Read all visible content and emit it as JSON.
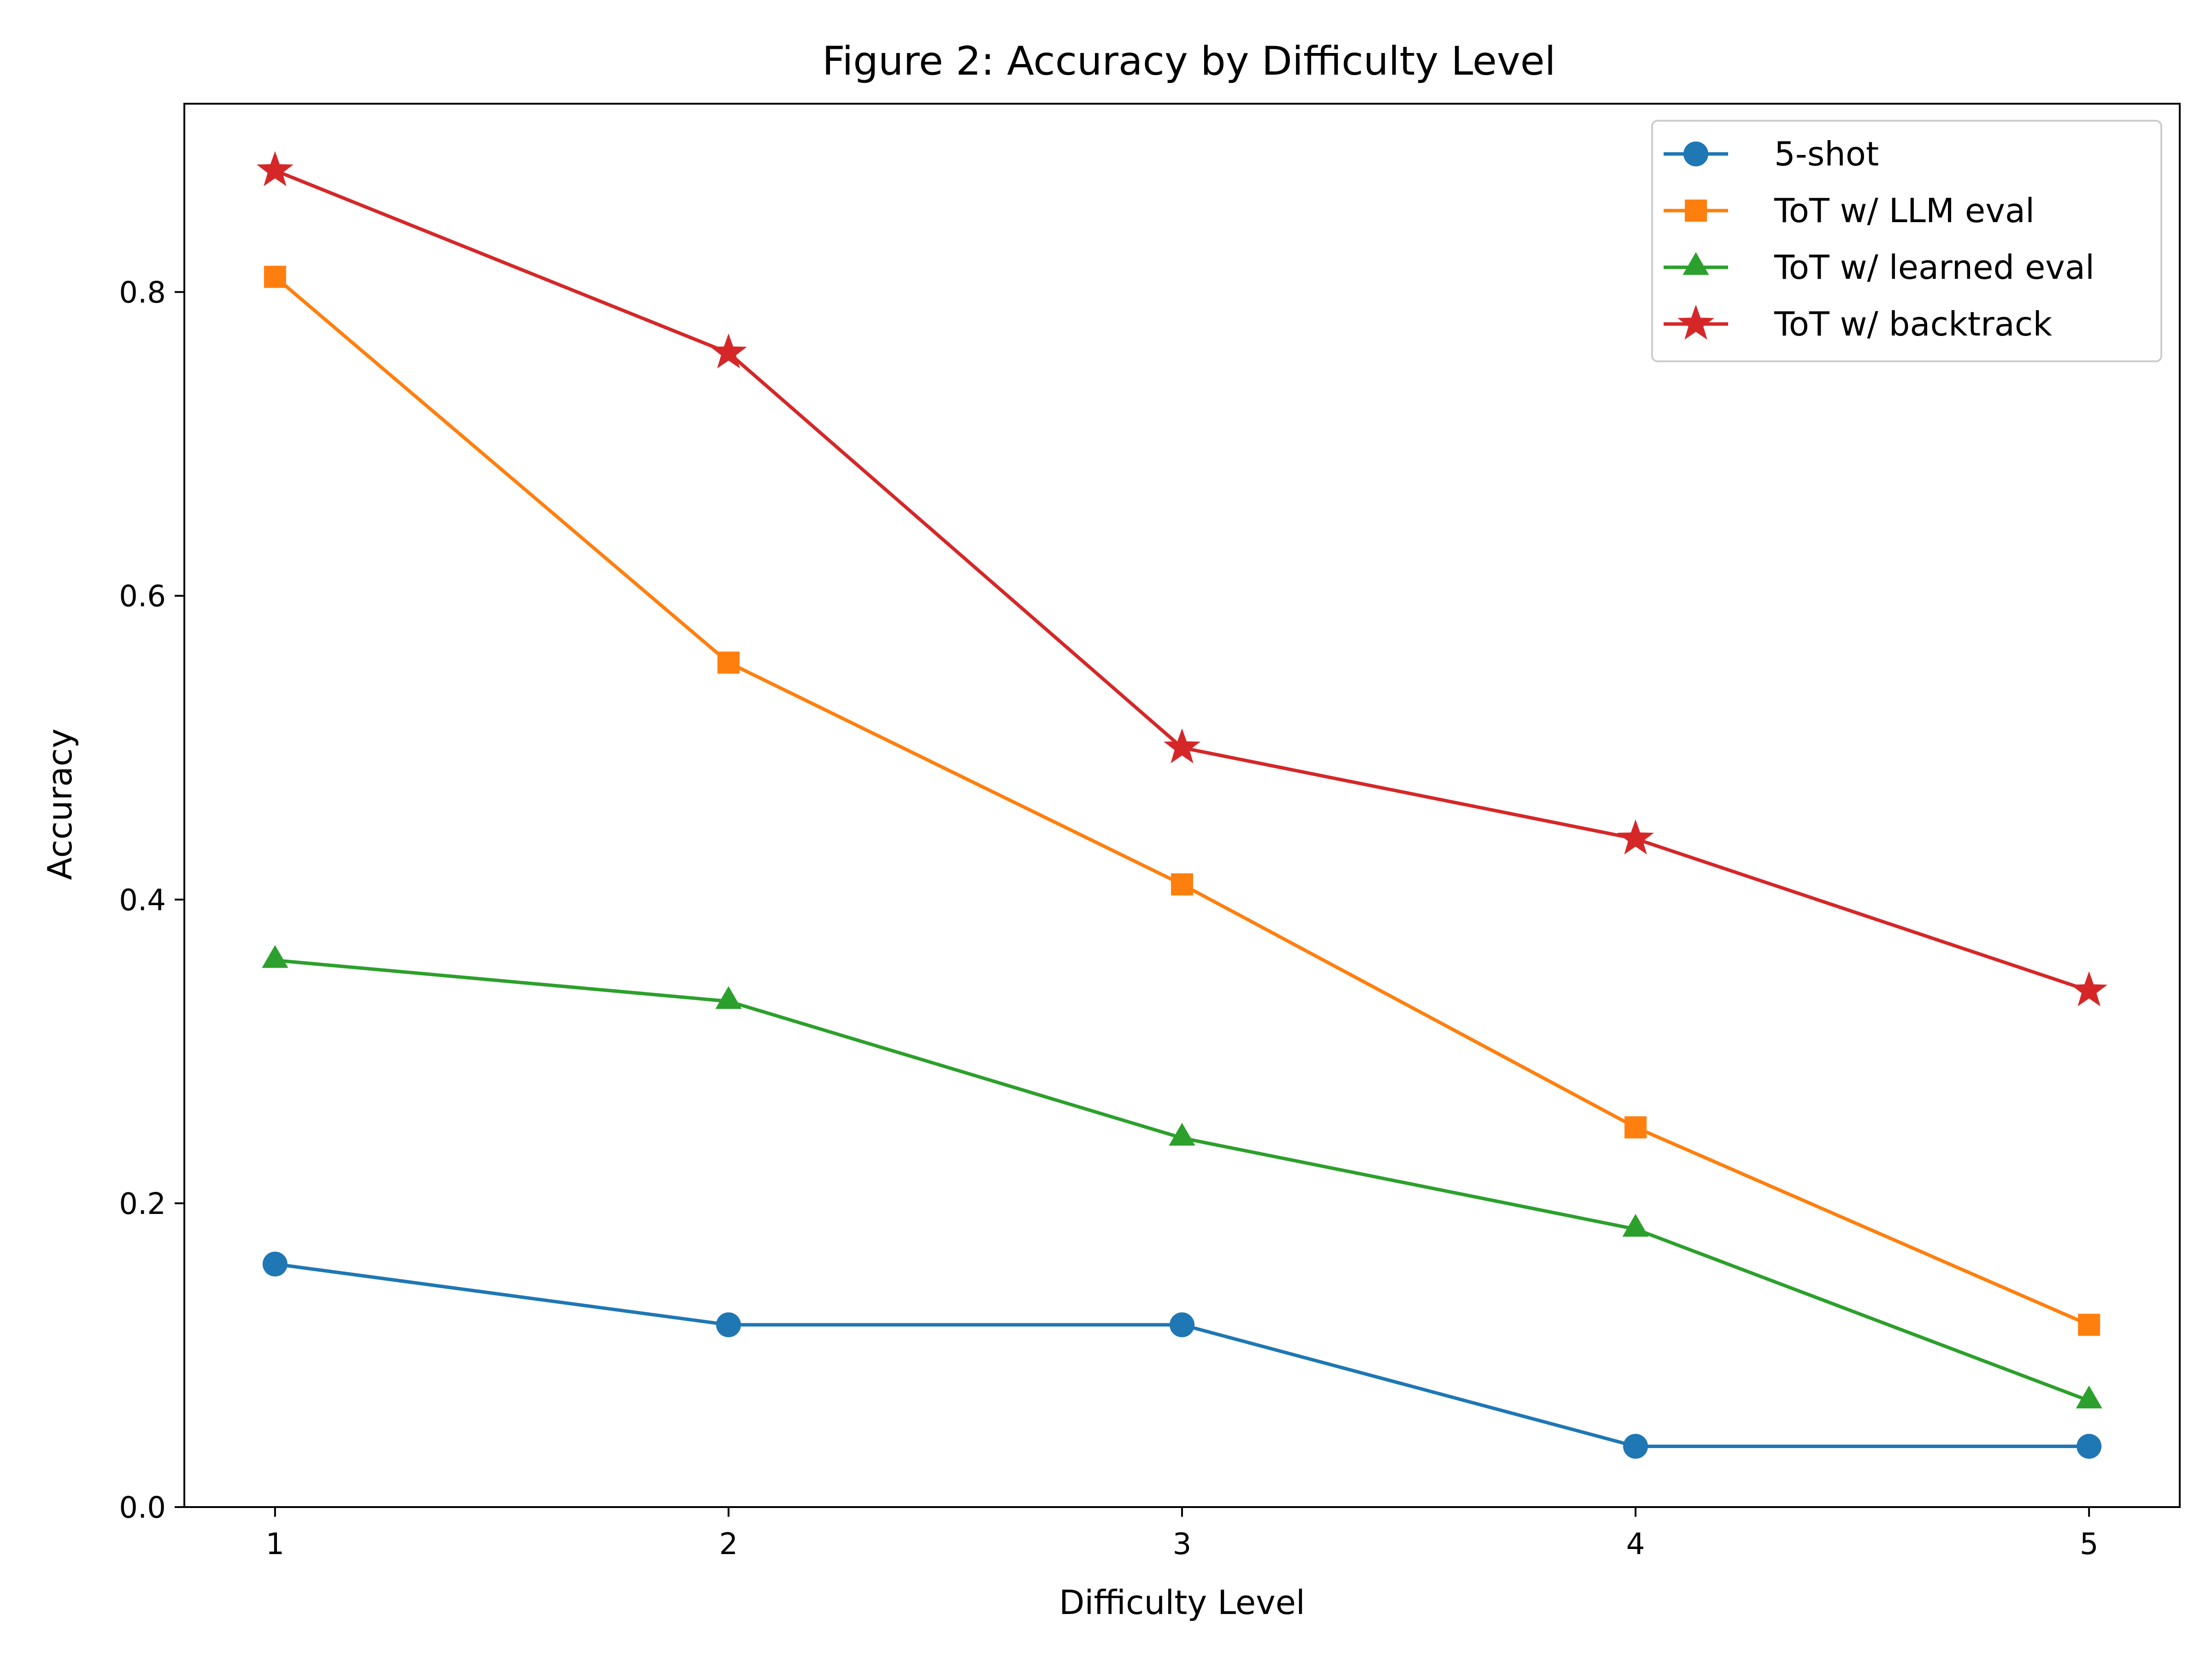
{
  "chart_data": {
    "type": "line",
    "title": "Figure 2: Accuracy by Difficulty Level",
    "xlabel": "Difficulty Level",
    "ylabel": "Accuracy",
    "x": [
      1,
      2,
      3,
      4,
      5
    ],
    "x_ticks": [
      "1",
      "2",
      "3",
      "4",
      "5"
    ],
    "y_ticks": [
      "0.0",
      "0.2",
      "0.4",
      "0.6",
      "0.8"
    ],
    "xlim": [
      0.8,
      5.2
    ],
    "ylim": [
      0,
      0.924
    ],
    "grid": false,
    "legend_position": "top-right",
    "series": [
      {
        "name": "5-shot",
        "color": "#1f77b4",
        "marker": "circle",
        "values": [
          0.16,
          0.12,
          0.12,
          0.04,
          0.04
        ]
      },
      {
        "name": "ToT w/ LLM eval",
        "color": "#ff7f0e",
        "marker": "square",
        "values": [
          0.81,
          0.556,
          0.41,
          0.25,
          0.12
        ]
      },
      {
        "name": "ToT w/ learned eval",
        "color": "#2ca02c",
        "marker": "triangle",
        "values": [
          0.36,
          0.333,
          0.243,
          0.183,
          0.07
        ]
      },
      {
        "name": "ToT w/ backtrack",
        "color": "#d62728",
        "marker": "star",
        "values": [
          0.88,
          0.76,
          0.5,
          0.44,
          0.34
        ]
      }
    ]
  }
}
